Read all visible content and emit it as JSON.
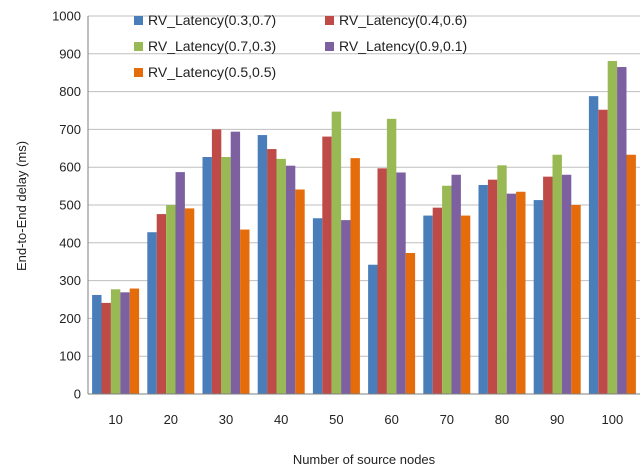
{
  "chart_data": {
    "type": "bar",
    "title": "",
    "xlabel": "Number of source nodes",
    "ylabel": "End-to-End delay (ms)",
    "ylim": [
      0,
      1000
    ],
    "yticks": [
      0,
      100,
      200,
      300,
      400,
      500,
      600,
      700,
      800,
      900,
      1000
    ],
    "grid": true,
    "legend_position": "top-left",
    "categories": [
      "10",
      "20",
      "30",
      "40",
      "50",
      "60",
      "70",
      "80",
      "90",
      "100"
    ],
    "series": [
      {
        "name": "RV_Latency(0.3,0.7)",
        "color": "#4a7ebb",
        "values": [
          262,
          428,
          627,
          685,
          465,
          342,
          472,
          553,
          513,
          788
        ]
      },
      {
        "name": "RV_Latency(0.4,0.6)",
        "color": "#be4b48",
        "values": [
          241,
          476,
          700,
          648,
          681,
          597,
          493,
          567,
          575,
          752
        ]
      },
      {
        "name": "RV_Latency(0.7,0.3)",
        "color": "#98b954",
        "values": [
          277,
          500,
          627,
          622,
          747,
          728,
          551,
          605,
          633,
          881
        ]
      },
      {
        "name": "RV_Latency(0.9,0.1)",
        "color": "#7d60a0",
        "values": [
          269,
          587,
          694,
          604,
          460,
          586,
          580,
          530,
          580,
          865
        ]
      },
      {
        "name": "RV_Latency(0.5,0.5)",
        "color": "#e46c0a",
        "values": [
          279,
          491,
          435,
          541,
          624,
          373,
          472,
          535,
          500,
          633
        ]
      }
    ]
  }
}
